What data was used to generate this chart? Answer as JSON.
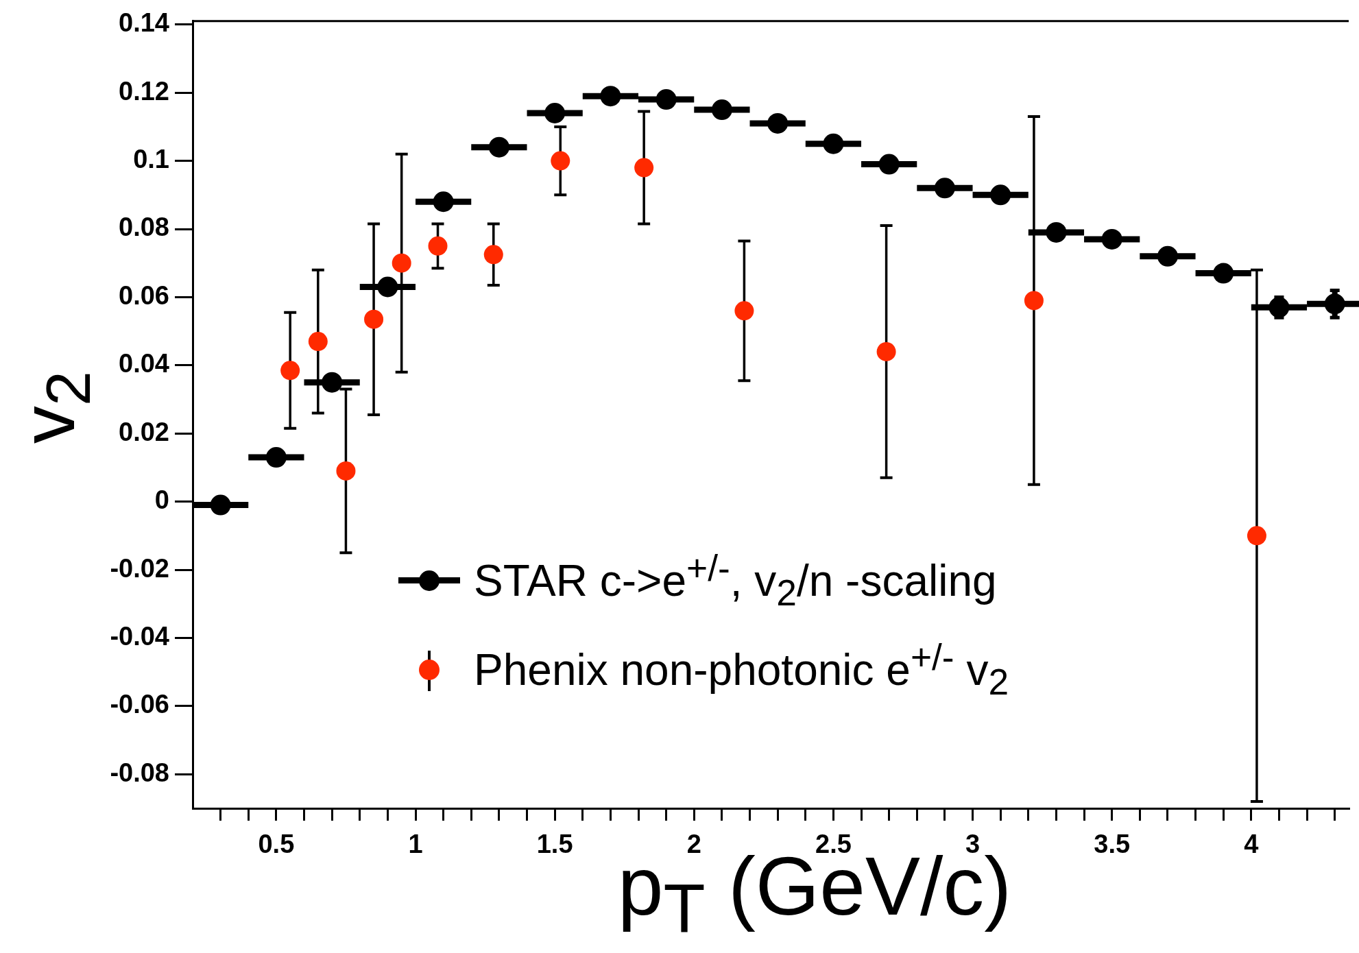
{
  "chart_data": {
    "type": "scatter",
    "xlabel": "p$_{T}$ (GeV/c)",
    "ylabel": "v$_{2}$",
    "xlim": [
      0.2,
      4.35
    ],
    "ylim": [
      -0.09,
      0.141
    ],
    "xticks": [
      {
        "value": 0.3,
        "label": null
      },
      {
        "value": 0.4,
        "label": null
      },
      0.5,
      {
        "value": 0.6,
        "label": null
      },
      {
        "value": 0.7,
        "label": null
      },
      {
        "value": 0.8,
        "label": null
      },
      {
        "value": 0.9,
        "label": null
      },
      1,
      {
        "value": 1.1,
        "label": null
      },
      {
        "value": 1.2,
        "label": null
      },
      {
        "value": 1.3,
        "label": null
      },
      {
        "value": 1.4,
        "label": null
      },
      1.5,
      {
        "value": 1.6,
        "label": null
      },
      {
        "value": 1.7,
        "label": null
      },
      {
        "value": 1.8,
        "label": null
      },
      {
        "value": 1.9,
        "label": null
      },
      2,
      {
        "value": 2.1,
        "label": null
      },
      {
        "value": 2.2,
        "label": null
      },
      {
        "value": 2.3,
        "label": null
      },
      {
        "value": 2.4,
        "label": null
      },
      2.5,
      {
        "value": 2.6,
        "label": null
      },
      {
        "value": 2.7,
        "label": null
      },
      {
        "value": 2.8,
        "label": null
      },
      {
        "value": 2.9,
        "label": null
      },
      3,
      {
        "value": 3.1,
        "label": null
      },
      {
        "value": 3.2,
        "label": null
      },
      {
        "value": 3.3,
        "label": null
      },
      {
        "value": 3.4,
        "label": null
      },
      3.5,
      {
        "value": 3.6,
        "label": null
      },
      {
        "value": 3.7,
        "label": null
      },
      {
        "value": 3.8,
        "label": null
      },
      {
        "value": 3.9,
        "label": null
      },
      4,
      {
        "value": 4.1,
        "label": null
      },
      {
        "value": 4.2,
        "label": null
      },
      {
        "value": 4.3,
        "label": null
      }
    ],
    "yticks": [
      -0.08,
      -0.06,
      -0.04,
      -0.02,
      0,
      0.02,
      0.04,
      0.06,
      0.08,
      0.1,
      0.12,
      0.14
    ],
    "marker": "circle",
    "legend": "bottom",
    "series": [
      {
        "type": "scatter",
        "name": "STAR c->e$^{+/-}$,  v$_{2}$/n -scaling",
        "color": "#000000",
        "x": [
          0.3,
          0.5,
          0.7,
          0.9,
          1.1,
          1.3,
          1.5,
          1.7,
          1.9,
          2.1,
          2.3,
          2.5,
          2.7,
          2.9,
          3.1,
          3.3,
          3.5,
          3.7,
          3.9,
          4.1,
          4.3
        ],
        "values": [
          -0.001,
          0.013,
          0.035,
          0.063,
          0.088,
          0.104,
          0.114,
          0.119,
          0.118,
          0.115,
          0.111,
          0.105,
          0.099,
          0.092,
          0.09,
          0.079,
          0.077,
          0.072,
          0.067,
          0.057,
          0.058
        ],
        "xerrors": [
          0.1,
          0.1,
          0.1,
          0.1,
          0.1,
          0.1,
          0.1,
          0.1,
          0.1,
          0.1,
          0.1,
          0.1,
          0.1,
          0.1,
          0.1,
          0.1,
          0.1,
          0.1,
          0.1,
          0.1,
          0.1
        ],
        "errors": [
          null,
          null,
          null,
          null,
          null,
          null,
          null,
          null,
          null,
          null,
          null,
          null,
          null,
          null,
          null,
          null,
          null,
          null,
          0.002,
          0.003,
          0.004
        ]
      },
      {
        "type": "scatter",
        "name": "Phenix non-photonic e$^{+/-}$ v$_{2}$",
        "color": "#ff2a00",
        "x": [
          0.55,
          0.65,
          0.75,
          0.85,
          0.95,
          1.08,
          1.28,
          1.52,
          1.82,
          2.18,
          2.69,
          3.22,
          4.02
        ],
        "values": [
          0.0385,
          0.047,
          0.009,
          0.0535,
          0.07,
          0.075,
          0.0725,
          0.1,
          0.098,
          0.056,
          0.044,
          0.059,
          -0.01
        ],
        "errors": [
          0.017,
          0.021,
          0.024,
          0.028,
          0.032,
          0.0065,
          0.009,
          0.01,
          0.0165,
          0.0205,
          0.037,
          0.054,
          0.078
        ]
      }
    ]
  }
}
